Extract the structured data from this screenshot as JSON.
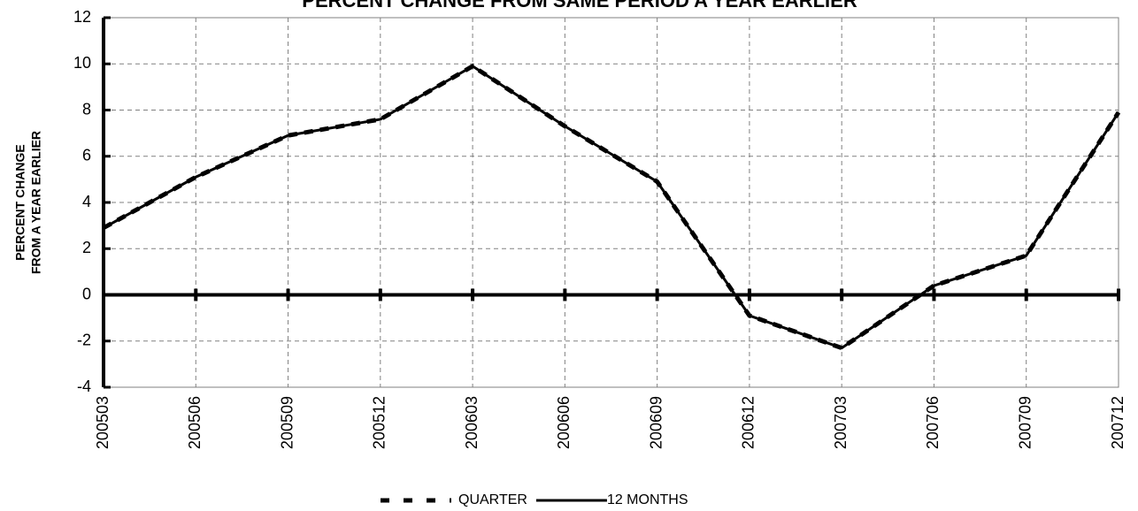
{
  "chart_data": {
    "type": "line",
    "title": "PERCENT CHANGE FROM SAME PERIOD A YEAR EARLIER",
    "y_label": [
      "PERCENT CHANGE",
      "FROM A YEAR EARLIER"
    ],
    "categories": [
      "200503",
      "200506",
      "200509",
      "200512",
      "200603",
      "200606",
      "200609",
      "200612",
      "200703",
      "200706",
      "200709",
      "200712"
    ],
    "series": [
      {
        "name": "QUARTER",
        "color": "#000000",
        "style": "dashed",
        "values": [
          2.9,
          5.1,
          6.9,
          7.6,
          9.9,
          7.3,
          4.9,
          -0.9,
          -2.3,
          0.4,
          1.7,
          7.9
        ]
      },
      {
        "name": "12 MONTHS",
        "color": "#000000",
        "style": "solid",
        "values": [
          2.9,
          5.1,
          6.9,
          7.6,
          9.9,
          7.3,
          4.9,
          -0.9,
          -2.3,
          0.4,
          1.7,
          7.9
        ]
      }
    ],
    "ylim": [
      -4,
      12
    ],
    "yticks": [
      -4,
      -2,
      0,
      2,
      4,
      6,
      8,
      10,
      12
    ],
    "grid": true
  }
}
